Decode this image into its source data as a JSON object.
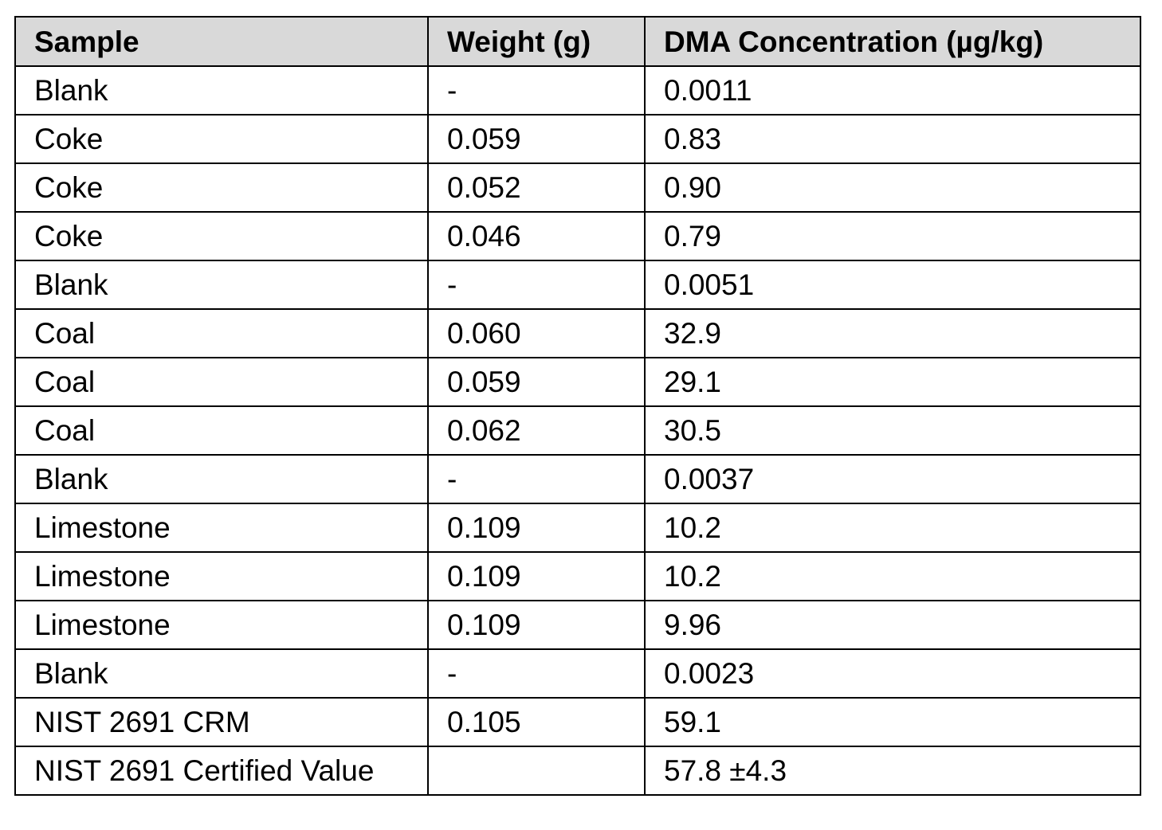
{
  "table": {
    "headers": [
      "Sample",
      "Weight (g)",
      "DMA Concentration (µg/kg)"
    ],
    "rows": [
      [
        "Blank",
        "-",
        "0.0011"
      ],
      [
        "Coke",
        "0.059",
        "0.83"
      ],
      [
        "Coke",
        "0.052",
        "0.90"
      ],
      [
        "Coke",
        "0.046",
        "0.79"
      ],
      [
        "Blank",
        "-",
        "0.0051"
      ],
      [
        "Coal",
        "0.060",
        "32.9"
      ],
      [
        "Coal",
        "0.059",
        "29.1"
      ],
      [
        "Coal",
        "0.062",
        "30.5"
      ],
      [
        "Blank",
        "-",
        "0.0037"
      ],
      [
        "Limestone",
        "0.109",
        "10.2"
      ],
      [
        "Limestone",
        "0.109",
        "10.2"
      ],
      [
        "Limestone",
        "0.109",
        "9.96"
      ],
      [
        "Blank",
        "-",
        "0.0023"
      ],
      [
        "NIST 2691 CRM",
        "0.105",
        "59.1"
      ],
      [
        "NIST 2691 Certified Value",
        "",
        "57.8 ±4.3"
      ]
    ]
  },
  "colors": {
    "header_background": "#d9d9d9",
    "border": "#000000",
    "text": "#000000"
  }
}
